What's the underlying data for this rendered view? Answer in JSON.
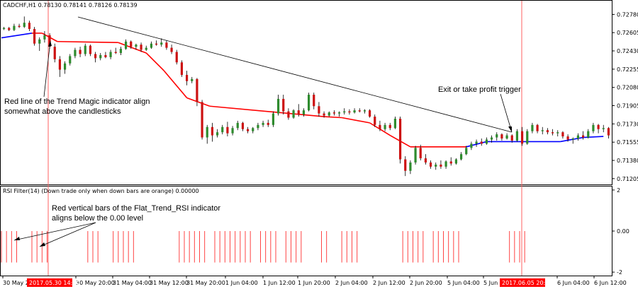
{
  "chart_data": {
    "type": "candlestick",
    "symbol_header": "CADCHF,H1  0.78130 0.78141 0.78126 0.78139",
    "indicator_header": "RSI Filter(14)  (Down trade only when down bars are orange) 0.00000",
    "price_axis": {
      "ylim": [
        0.7117,
        0.7283
      ],
      "ticks": [
        "0.72780",
        "0.72605",
        "0.72430",
        "0.72255",
        "0.72080",
        "0.71905",
        "0.71730",
        "0.71555",
        "0.71380",
        "0.71205"
      ]
    },
    "rsi_axis": {
      "ylim": [
        -2.1,
        2.1
      ],
      "ticks": [
        "2",
        "0.00",
        "-2"
      ]
    },
    "time_labels": [
      "30 May 2",
      "30 May 20:00",
      "31 May 04:00",
      "31 May 12:00",
      "31 May 20:00",
      "1 Jun 04:00",
      "1 Jun 12:00",
      "1 Jun 20:00",
      "2 Jun 04:00",
      "2 Jun 12:00",
      "2 Jun 20:00",
      "5 Jun 04:00",
      "5 Jun",
      "6 Jun 04:00",
      "6 Jun 12:00"
    ],
    "highlighted_times": [
      "2017.05.30 14:00",
      "2017.06.05 20:00"
    ],
    "candles": [
      [
        0.7264,
        0.7266,
        0.7263,
        0.7265
      ],
      [
        0.7265,
        0.7266,
        0.7262,
        0.7263
      ],
      [
        0.7263,
        0.7269,
        0.7262,
        0.7267
      ],
      [
        0.7267,
        0.7269,
        0.7265,
        0.7266
      ],
      [
        0.7266,
        0.7276,
        0.7265,
        0.727
      ],
      [
        0.727,
        0.7272,
        0.7262,
        0.7264
      ],
      [
        0.7264,
        0.7266,
        0.7248,
        0.725
      ],
      [
        0.725,
        0.7256,
        0.7243,
        0.7254
      ],
      [
        0.7254,
        0.7262,
        0.7251,
        0.7258
      ],
      [
        0.7258,
        0.726,
        0.7245,
        0.7247
      ],
      [
        0.7247,
        0.725,
        0.7232,
        0.7235
      ],
      [
        0.7235,
        0.7238,
        0.7218,
        0.7225
      ],
      [
        0.7225,
        0.7233,
        0.7221,
        0.7231
      ],
      [
        0.7231,
        0.724,
        0.7229,
        0.7238
      ],
      [
        0.7238,
        0.7246,
        0.7236,
        0.7244
      ],
      [
        0.7244,
        0.7247,
        0.7237,
        0.724
      ],
      [
        0.724,
        0.725,
        0.7238,
        0.7248
      ],
      [
        0.7248,
        0.7249,
        0.7238,
        0.724
      ],
      [
        0.724,
        0.7242,
        0.7232,
        0.7236
      ],
      [
        0.7236,
        0.7241,
        0.7234,
        0.7239
      ],
      [
        0.7239,
        0.7242,
        0.7236,
        0.7237
      ],
      [
        0.7237,
        0.7244,
        0.7235,
        0.7242
      ],
      [
        0.7242,
        0.7246,
        0.724,
        0.7241
      ],
      [
        0.7241,
        0.7247,
        0.7239,
        0.7245
      ],
      [
        0.7245,
        0.7254,
        0.7244,
        0.7252
      ],
      [
        0.7252,
        0.7253,
        0.7245,
        0.7247
      ],
      [
        0.7247,
        0.725,
        0.7244,
        0.7249
      ],
      [
        0.7249,
        0.7251,
        0.7242,
        0.7244
      ],
      [
        0.7244,
        0.7248,
        0.7243,
        0.7246
      ],
      [
        0.7246,
        0.7252,
        0.7245,
        0.725
      ],
      [
        0.725,
        0.7253,
        0.7248,
        0.7249
      ],
      [
        0.7249,
        0.7255,
        0.7247,
        0.7251
      ],
      [
        0.7251,
        0.7253,
        0.7244,
        0.7246
      ],
      [
        0.7246,
        0.7249,
        0.724,
        0.7242
      ],
      [
        0.7242,
        0.7244,
        0.723,
        0.7232
      ],
      [
        0.7232,
        0.7234,
        0.7218,
        0.722
      ],
      [
        0.722,
        0.7224,
        0.721,
        0.7214
      ],
      [
        0.7214,
        0.7218,
        0.7212,
        0.7216
      ],
      [
        0.7216,
        0.7217,
        0.719,
        0.7194
      ],
      [
        0.7194,
        0.7196,
        0.7158,
        0.716
      ],
      [
        0.716,
        0.7172,
        0.7154,
        0.717
      ],
      [
        0.717,
        0.7174,
        0.7156,
        0.7162
      ],
      [
        0.7162,
        0.7168,
        0.716,
        0.7165
      ],
      [
        0.7165,
        0.7172,
        0.7163,
        0.717
      ],
      [
        0.717,
        0.7175,
        0.7161,
        0.7164
      ],
      [
        0.7164,
        0.7171,
        0.7162,
        0.7169
      ],
      [
        0.7169,
        0.7176,
        0.7167,
        0.7174
      ],
      [
        0.7174,
        0.7175,
        0.7166,
        0.7168
      ],
      [
        0.7168,
        0.717,
        0.7164,
        0.7166
      ],
      [
        0.7166,
        0.717,
        0.7164,
        0.7169
      ],
      [
        0.7169,
        0.7174,
        0.7167,
        0.7172
      ],
      [
        0.7172,
        0.7176,
        0.717,
        0.7174
      ],
      [
        0.7174,
        0.7177,
        0.717,
        0.7172
      ],
      [
        0.7172,
        0.7185,
        0.717,
        0.7183
      ],
      [
        0.7183,
        0.7201,
        0.7181,
        0.7197
      ],
      [
        0.7197,
        0.7201,
        0.7182,
        0.7185
      ],
      [
        0.7185,
        0.7188,
        0.7177,
        0.7179
      ],
      [
        0.7179,
        0.7187,
        0.7178,
        0.7186
      ],
      [
        0.7186,
        0.7192,
        0.718,
        0.7182
      ],
      [
        0.7182,
        0.7188,
        0.718,
        0.7186
      ],
      [
        0.7186,
        0.7203,
        0.7185,
        0.7201
      ],
      [
        0.7201,
        0.7203,
        0.7187,
        0.719
      ],
      [
        0.719,
        0.7194,
        0.718,
        0.7183
      ],
      [
        0.7183,
        0.7185,
        0.7179,
        0.7181
      ],
      [
        0.7181,
        0.7185,
        0.718,
        0.7184
      ],
      [
        0.7184,
        0.7186,
        0.7181,
        0.7183
      ],
      [
        0.7183,
        0.7185,
        0.718,
        0.7184
      ],
      [
        0.7184,
        0.7188,
        0.7182,
        0.7185
      ],
      [
        0.7185,
        0.7187,
        0.7182,
        0.7184
      ],
      [
        0.7184,
        0.7188,
        0.7183,
        0.7186
      ],
      [
        0.7186,
        0.7188,
        0.7184,
        0.7185
      ],
      [
        0.7185,
        0.7187,
        0.7183,
        0.7186
      ],
      [
        0.7186,
        0.7187,
        0.7179,
        0.718
      ],
      [
        0.718,
        0.7182,
        0.717,
        0.7172
      ],
      [
        0.7172,
        0.7176,
        0.7166,
        0.7168
      ],
      [
        0.7168,
        0.7174,
        0.7166,
        0.7172
      ],
      [
        0.7172,
        0.7174,
        0.7167,
        0.7169
      ],
      [
        0.7169,
        0.718,
        0.7168,
        0.7178
      ],
      [
        0.7178,
        0.718,
        0.7135,
        0.7139
      ],
      [
        0.7139,
        0.7142,
        0.7123,
        0.7128
      ],
      [
        0.7128,
        0.7138,
        0.7125,
        0.7136
      ],
      [
        0.7136,
        0.7152,
        0.7134,
        0.715
      ],
      [
        0.715,
        0.7153,
        0.7138,
        0.714
      ],
      [
        0.714,
        0.7144,
        0.7134,
        0.7136
      ],
      [
        0.7136,
        0.7138,
        0.713,
        0.7132
      ],
      [
        0.7132,
        0.7136,
        0.7129,
        0.7134
      ],
      [
        0.7134,
        0.7138,
        0.713,
        0.7132
      ],
      [
        0.7132,
        0.7138,
        0.713,
        0.7137
      ],
      [
        0.7137,
        0.7141,
        0.7133,
        0.7135
      ],
      [
        0.7135,
        0.714,
        0.7134,
        0.7139
      ],
      [
        0.7139,
        0.7146,
        0.7138,
        0.7144
      ],
      [
        0.7144,
        0.7152,
        0.7143,
        0.715
      ],
      [
        0.715,
        0.7156,
        0.7148,
        0.7154
      ],
      [
        0.7154,
        0.7158,
        0.7151,
        0.7156
      ],
      [
        0.7156,
        0.7159,
        0.7152,
        0.7154
      ],
      [
        0.7154,
        0.716,
        0.7153,
        0.7158
      ],
      [
        0.7158,
        0.7162,
        0.7155,
        0.716
      ],
      [
        0.716,
        0.7165,
        0.7157,
        0.7163
      ],
      [
        0.7163,
        0.7164,
        0.7157,
        0.7159
      ],
      [
        0.7159,
        0.7164,
        0.7158,
        0.7162
      ],
      [
        0.7162,
        0.7163,
        0.7155,
        0.7157
      ],
      [
        0.7157,
        0.7168,
        0.7156,
        0.7166
      ],
      [
        0.7166,
        0.717,
        0.7152,
        0.7154
      ],
      [
        0.7154,
        0.7168,
        0.7153,
        0.7166
      ],
      [
        0.7166,
        0.7174,
        0.7164,
        0.7172
      ],
      [
        0.7172,
        0.7173,
        0.7164,
        0.7166
      ],
      [
        0.7166,
        0.717,
        0.7163,
        0.7167
      ],
      [
        0.7167,
        0.7169,
        0.7163,
        0.7165
      ],
      [
        0.7165,
        0.7168,
        0.7162,
        0.7164
      ],
      [
        0.7164,
        0.7167,
        0.7161,
        0.7165
      ],
      [
        0.7165,
        0.7166,
        0.7159,
        0.7161
      ],
      [
        0.7161,
        0.7163,
        0.7156,
        0.7158
      ],
      [
        0.7158,
        0.716,
        0.7154,
        0.7159
      ],
      [
        0.7159,
        0.7164,
        0.7157,
        0.7162
      ],
      [
        0.7162,
        0.7166,
        0.7158,
        0.716
      ],
      [
        0.716,
        0.7168,
        0.7159,
        0.7166
      ],
      [
        0.7166,
        0.7174,
        0.7164,
        0.7172
      ],
      [
        0.7172,
        0.7173,
        0.7164,
        0.7168
      ],
      [
        0.7168,
        0.7172,
        0.7165,
        0.7169
      ],
      [
        0.7169,
        0.717,
        0.7159,
        0.7162
      ]
    ],
    "trend_magic": [
      [
        0,
        0.72555,
        "blue"
      ],
      [
        12,
        0.726,
        "blue"
      ],
      [
        16,
        0.726,
        "red"
      ],
      [
        22,
        0.7252,
        "red"
      ],
      [
        46,
        0.7251,
        "red"
      ],
      [
        57,
        0.7241,
        "red"
      ],
      [
        64,
        0.7224,
        "red"
      ],
      [
        73,
        0.7198,
        "red"
      ],
      [
        82,
        0.719,
        "red"
      ],
      [
        127,
        0.718,
        "red"
      ],
      [
        134,
        0.7179,
        "red"
      ],
      [
        145,
        0.7174,
        "red"
      ],
      [
        153,
        0.7162,
        "red"
      ],
      [
        161,
        0.7151,
        "red"
      ],
      [
        183,
        0.7151,
        "red"
      ],
      [
        191,
        0.7156,
        "blue"
      ],
      [
        206,
        0.7156,
        "blue"
      ],
      [
        220,
        0.7156,
        "blue"
      ],
      [
        229,
        0.716,
        "blue"
      ],
      [
        237,
        0.7161,
        "blue"
      ]
    ],
    "rsi_bars_value": -0.5,
    "rsi_down_bars": [
      [
        0,
        6
      ],
      [
        11,
        18
      ],
      [
        34,
        39
      ],
      [
        44,
        52
      ],
      [
        70,
        80
      ],
      [
        84,
        98
      ],
      [
        102,
        108
      ],
      [
        112,
        118
      ],
      [
        125,
        129
      ],
      [
        134,
        141
      ],
      [
        158,
        166
      ],
      [
        170,
        180
      ],
      [
        200,
        206
      ]
    ]
  },
  "annotations": {
    "trend_magic_note_line1": "Red line of the Trend Magic indicator align",
    "trend_magic_note_line2": "somewhat above the candlesticks",
    "rsi_note_line1": "Red vertical bars of the Flat_Trend_RSI indicator",
    "rsi_note_line2": "aligns below the 0.00 level",
    "exit_note": "Exit or take profit trigger"
  },
  "colors": {
    "bull": "#2e8b2e",
    "bear": "#cc1111",
    "trend_red": "#ff0000",
    "trend_blue": "#0000ff",
    "rsi_bar": "#ff4444",
    "vline": "#ff6060",
    "highlight_bg": "#ff0000"
  }
}
